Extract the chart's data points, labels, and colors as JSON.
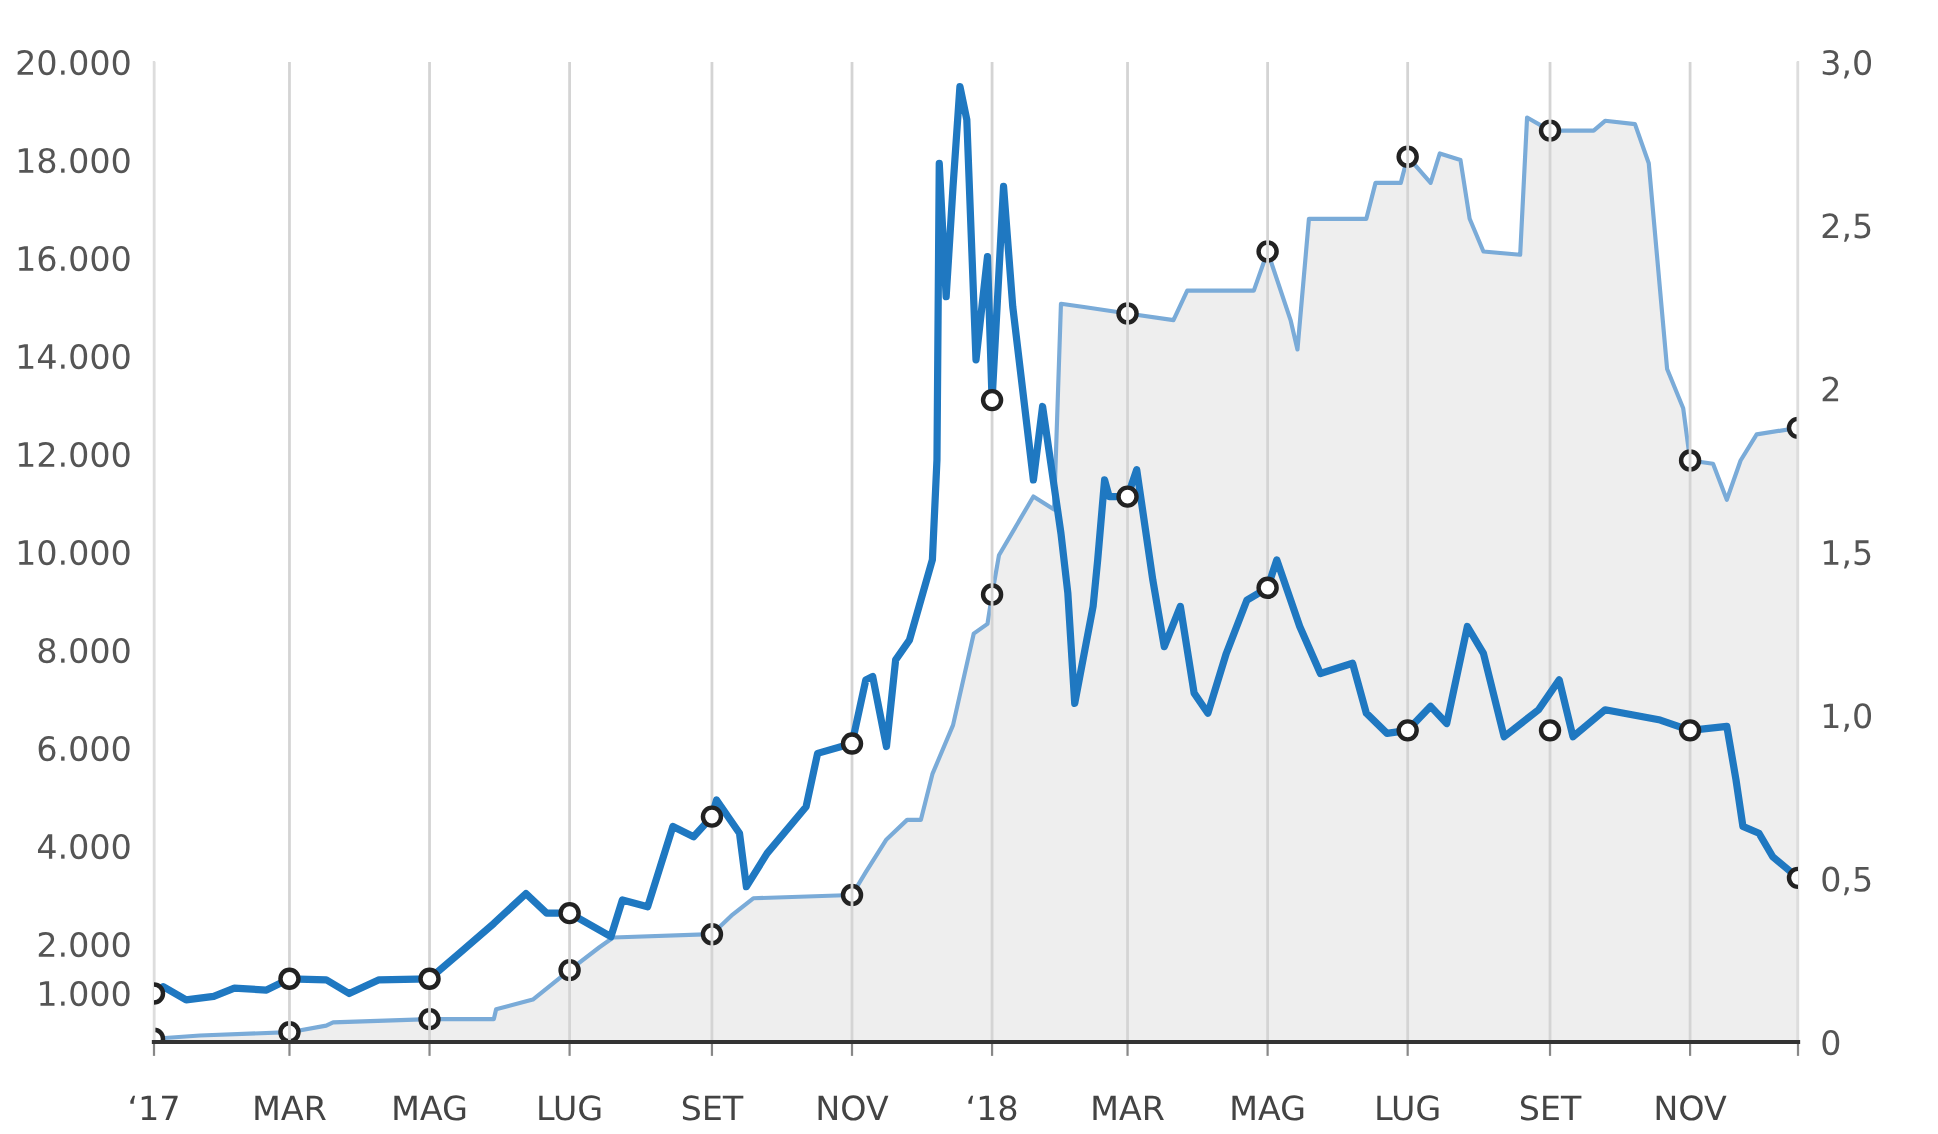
{
  "chart_data": {
    "type": "line",
    "grid": "x",
    "xlim": [
      "2017-01-01",
      "2018-12-18"
    ],
    "xticks": [
      {
        "value": "2017-01-01",
        "label": "‘17"
      },
      {
        "value": "2017-03-01",
        "label": "MAR"
      },
      {
        "value": "2017-05-01",
        "label": "MAG"
      },
      {
        "value": "2017-07-01",
        "label": "LUG"
      },
      {
        "value": "2017-09-01",
        "label": "SET"
      },
      {
        "value": "2017-11-01",
        "label": "NOV"
      },
      {
        "value": "2018-01-01",
        "label": "‘18"
      },
      {
        "value": "2018-03-01",
        "label": "MAR"
      },
      {
        "value": "2018-05-01",
        "label": "MAG"
      },
      {
        "value": "2018-07-01",
        "label": "LUG"
      },
      {
        "value": "2018-09-01",
        "label": "SET"
      },
      {
        "value": "2018-11-01",
        "label": "NOV"
      },
      {
        "value": "2018-12-18",
        "label": null
      }
    ],
    "ylim": [
      0,
      20000
    ],
    "yticks": [
      {
        "value": 1000,
        "label": "1.000"
      },
      {
        "value": 2000,
        "label": "2.000"
      },
      {
        "value": 4000,
        "label": "4.000"
      },
      {
        "value": 6000,
        "label": "6.000"
      },
      {
        "value": 8000,
        "label": "8.000"
      },
      {
        "value": 10000,
        "label": "10.000"
      },
      {
        "value": 12000,
        "label": "12.000"
      },
      {
        "value": 14000,
        "label": "14.000"
      },
      {
        "value": 16000,
        "label": "16.000"
      },
      {
        "value": 18000,
        "label": "18.000"
      },
      {
        "value": 20000,
        "label": "20.000"
      }
    ],
    "y2lim": [
      0,
      3
    ],
    "y2ticks": [
      0,
      {
        "value": 0.5,
        "label": "0,5"
      },
      {
        "value": 1,
        "label": "1,0"
      },
      {
        "value": 1.5,
        "label": "1,5"
      },
      2,
      {
        "value": 2.5,
        "label": "2,5"
      },
      {
        "value": 3,
        "label": "3,0"
      }
    ],
    "series": [
      {
        "type": "area",
        "axis": "y2",
        "color": "#7aabd8",
        "x": [
          "2017-01-01",
          "2017-01-21",
          "2017-03-01",
          "2017-03-17",
          "2017-03-20",
          "2017-05-01",
          "2017-05-29",
          "2017-05-30",
          "2017-06-15",
          "2017-07-01",
          "2017-07-14",
          "2017-07-20",
          "2017-09-01",
          "2017-09-10",
          "2017-09-19",
          "2017-11-01",
          "2017-11-07",
          "2017-11-16",
          "2017-11-25",
          "2017-12-01",
          "2017-12-06",
          "2017-12-15",
          "2017-12-24",
          "2017-12-30",
          "2018-01-01",
          "2018-01-04",
          "2018-01-19",
          "2018-01-28",
          "2018-01-31",
          "2018-02-10",
          "2018-03-01",
          "2018-03-21",
          "2018-03-27",
          "2018-04-25",
          "2018-05-01",
          "2018-05-11",
          "2018-05-14",
          "2018-05-19",
          "2018-06-13",
          "2018-06-17",
          "2018-06-28",
          "2018-07-01",
          "2018-07-11",
          "2018-07-15",
          "2018-07-24",
          "2018-07-28",
          "2018-08-03",
          "2018-08-19",
          "2018-08-22",
          "2018-09-01",
          "2018-09-20",
          "2018-09-25",
          "2018-10-08",
          "2018-10-14",
          "2018-10-22",
          "2018-10-29",
          "2018-11-01",
          "2018-11-11",
          "2018-11-17",
          "2018-11-23",
          "2018-11-30",
          "2018-12-18"
        ],
        "values": [
          0.01,
          0.02,
          0.03,
          0.05,
          0.06,
          0.07,
          0.07,
          0.1,
          0.13,
          0.22,
          0.29,
          0.32,
          0.33,
          0.39,
          0.44,
          0.45,
          0.52,
          0.62,
          0.68,
          0.68,
          0.82,
          0.97,
          1.25,
          1.28,
          1.37,
          1.49,
          1.67,
          1.63,
          2.26,
          2.25,
          2.23,
          2.21,
          2.3,
          2.3,
          2.42,
          2.21,
          2.12,
          2.52,
          2.52,
          2.63,
          2.63,
          2.71,
          2.63,
          2.72,
          2.7,
          2.52,
          2.42,
          2.41,
          2.83,
          2.79,
          2.79,
          2.82,
          2.81,
          2.69,
          2.06,
          1.94,
          1.78,
          1.77,
          1.66,
          1.78,
          1.86,
          1.88
        ]
      },
      {
        "type": "scatter",
        "axis": "y2",
        "color": "#222222",
        "x": [
          "2017-01-01",
          "2017-03-01",
          "2017-05-01",
          "2017-07-01",
          "2017-09-01",
          "2017-11-01",
          "2018-01-01",
          "2018-03-01",
          "2018-05-01",
          "2018-07-01",
          "2018-09-01",
          "2018-11-01",
          "2018-12-18"
        ],
        "values": [
          0.01,
          0.03,
          0.07,
          0.22,
          0.33,
          0.45,
          1.37,
          2.23,
          2.42,
          2.71,
          2.79,
          1.78,
          1.88
        ]
      },
      {
        "type": "scatter",
        "color": "#222222",
        "x": [
          "2017-01-01",
          "2017-03-01",
          "2017-05-01",
          "2017-07-01",
          "2017-09-01",
          "2017-11-01",
          "2018-01-01",
          "2018-03-01",
          "2018-05-01",
          "2018-07-01",
          "2018-09-01",
          "2018-11-01",
          "2018-12-18"
        ],
        "values": [
          990,
          1290,
          1290,
          2630,
          4600,
          6090,
          13100,
          11130,
          9270,
          6360,
          6360,
          6360,
          3350
        ]
      },
      {
        "color": "#1f78c1",
        "x": [
          "2017-01-01",
          "2017-01-05",
          "2017-01-15",
          "2017-01-27",
          "2017-02-05",
          "2017-02-19",
          "2017-03-01",
          "2017-03-17",
          "2017-03-27",
          "2017-04-09",
          "2017-05-01",
          "2017-05-14",
          "2017-05-29",
          "2017-06-12",
          "2017-06-21",
          "2017-07-01",
          "2017-07-19",
          "2017-07-24",
          "2017-08-04",
          "2017-08-15",
          "2017-08-24",
          "2017-09-01",
          "2017-09-03",
          "2017-09-13",
          "2017-09-16",
          "2017-09-25",
          "2017-10-12",
          "2017-10-17",
          "2017-11-01",
          "2017-11-07",
          "2017-11-10",
          "2017-11-16",
          "2017-11-20",
          "2017-11-26",
          "2017-12-06",
          "2017-12-08",
          "2017-12-09",
          "2017-12-12",
          "2017-12-15",
          "2017-12-18",
          "2017-12-21",
          "2017-12-25",
          "2017-12-30",
          "2018-01-01",
          "2018-01-06",
          "2018-01-10",
          "2018-01-19",
          "2018-01-23",
          "2018-01-31",
          "2018-02-03",
          "2018-02-06",
          "2018-02-14",
          "2018-02-16",
          "2018-02-19",
          "2018-02-21",
          "2018-03-01",
          "2018-03-05",
          "2018-03-12",
          "2018-03-17",
          "2018-03-24",
          "2018-03-30",
          "2018-04-05",
          "2018-04-13",
          "2018-04-22",
          "2018-05-01",
          "2018-05-05",
          "2018-05-15",
          "2018-05-24",
          "2018-06-07",
          "2018-06-13",
          "2018-06-22",
          "2018-07-01",
          "2018-07-11",
          "2018-07-18",
          "2018-07-27",
          "2018-08-03",
          "2018-08-12",
          "2018-08-27",
          "2018-09-05",
          "2018-09-11",
          "2018-09-25",
          "2018-10-19",
          "2018-11-01",
          "2018-11-17",
          "2018-11-21",
          "2018-11-24",
          "2018-12-01",
          "2018-12-07",
          "2018-12-18"
        ],
        "values": [
          990,
          1130,
          860,
          930,
          1100,
          1060,
          1290,
          1270,
          990,
          1270,
          1290,
          1810,
          2420,
          3030,
          2630,
          2630,
          2150,
          2900,
          2760,
          4400,
          4190,
          4600,
          4940,
          4260,
          3170,
          3850,
          4800,
          5890,
          6090,
          7390,
          7460,
          6030,
          7800,
          8200,
          9840,
          11880,
          17930,
          15210,
          17460,
          19500,
          18820,
          13920,
          16030,
          13100,
          17460,
          15010,
          11470,
          12970,
          10380,
          9160,
          6910,
          8890,
          9840,
          11470,
          11130,
          11130,
          11680,
          9430,
          8070,
          8890,
          7120,
          6710,
          7930,
          9020,
          9270,
          9840,
          8480,
          7520,
          7730,
          6710,
          6300,
          6360,
          6850,
          6500,
          8480,
          7930,
          6230,
          6780,
          7390,
          6230,
          6780,
          6570,
          6360,
          6440,
          5350,
          4400,
          4260,
          3780,
          3350
        ]
      }
    ]
  }
}
